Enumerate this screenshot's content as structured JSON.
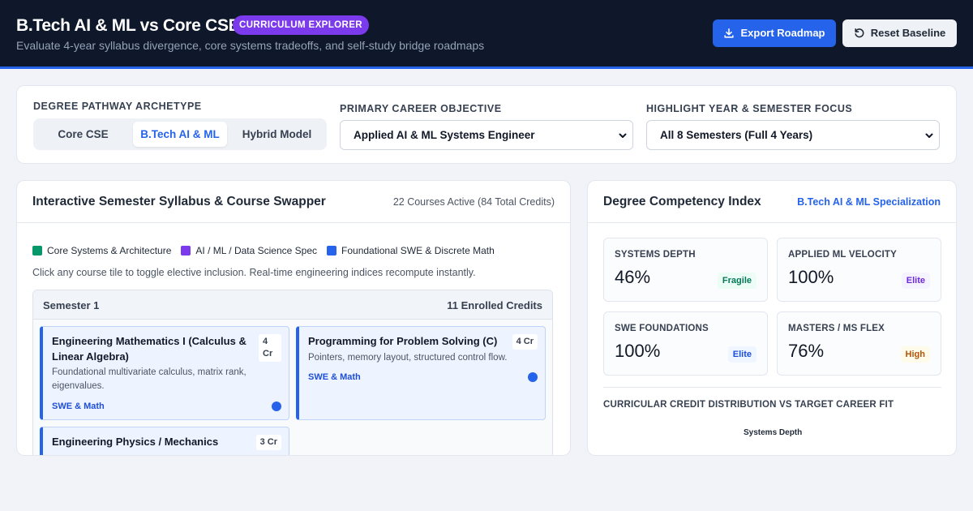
{
  "header": {
    "title": "B.Tech AI & ML vs Core CSE",
    "badge": "CURRICULUM EXPLORER",
    "subtitle": "Evaluate 4-year syllabus divergence, core systems tradeoffs, and self-study bridge roadmaps",
    "export_label": "Export Roadmap",
    "reset_label": "Reset Baseline",
    "export_icon": "download-icon",
    "reset_icon": "reset-icon"
  },
  "controls": {
    "pathway_label": "DEGREE PATHWAY ARCHETYPE",
    "pathway_options": [
      "Core CSE",
      "B.Tech AI & ML",
      "Hybrid Model"
    ],
    "pathway_selected": "B.Tech AI & ML",
    "career_label": "PRIMARY CAREER OBJECTIVE",
    "career_value": "Applied AI & ML Systems Engineer",
    "focus_label": "HIGHLIGHT YEAR & SEMESTER FOCUS",
    "focus_value": "All 8 Semesters (Full 4 Years)"
  },
  "syllabus": {
    "title": "Interactive Semester Syllabus & Course Swapper",
    "meta": "22 Courses Active (84 Total Credits)",
    "legend": [
      {
        "label": "Core Systems & Architecture",
        "color": "#059669"
      },
      {
        "label": "AI / ML / Data Science Spec",
        "color": "#7c3aed"
      },
      {
        "label": "Foundational SWE & Discrete Math",
        "color": "#2563eb"
      }
    ],
    "hint": "Click any course tile to toggle elective inclusion. Real-time engineering indices recompute instantly.",
    "semester": {
      "title": "Semester 1",
      "credits": "11 Enrolled Credits",
      "courses": [
        {
          "name": "Engineering Mathematics I (Calculus & Linear Algebra)",
          "credits": "4 Cr",
          "desc": "Foundational multivariate calculus, matrix rank, eigenvalues.",
          "tag": "SWE & Math",
          "selected": true
        },
        {
          "name": "Programming for Problem Solving (C)",
          "credits": "4 Cr",
          "desc": "Pointers, memory layout, structured control flow.",
          "tag": "SWE & Math",
          "selected": true
        },
        {
          "name": "Engineering Physics / Mechanics",
          "credits": "3 Cr",
          "desc": "",
          "tag": "",
          "selected": true
        }
      ]
    }
  },
  "competency": {
    "title": "Degree Competency Index",
    "spec": "B.Tech AI & ML Specialization",
    "metrics": [
      {
        "label": "SYSTEMS DEPTH",
        "value": "46%",
        "badge": "Fragile",
        "badge_color": "#047857",
        "badge_bg": "#ecfdf5"
      },
      {
        "label": "APPLIED ML VELOCITY",
        "value": "100%",
        "badge": "Elite",
        "badge_color": "#6d28d9",
        "badge_bg": "#f5f3ff"
      },
      {
        "label": "SWE FOUNDATIONS",
        "value": "100%",
        "badge": "Elite",
        "badge_color": "#1d4ed8",
        "badge_bg": "#eff6ff"
      },
      {
        "label": "MASTERS / MS FLEX",
        "value": "76%",
        "badge": "High",
        "badge_color": "#b45309",
        "badge_bg": "#fffbeb"
      }
    ],
    "distribution_title": "CURRICULAR CREDIT DISTRIBUTION VS TARGET CAREER FIT",
    "radar_axis_top": "Systems Depth"
  }
}
